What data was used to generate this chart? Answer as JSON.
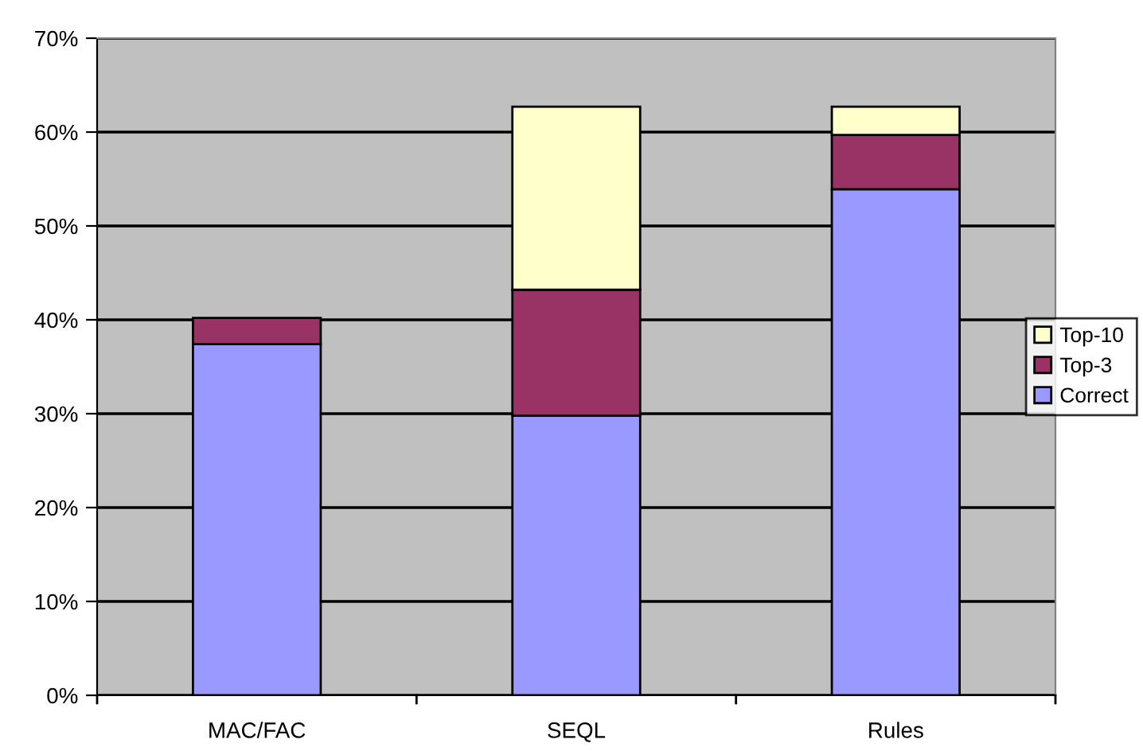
{
  "chart_data": {
    "type": "bar",
    "stacked": true,
    "categories": [
      "MAC/FAC",
      "SEQL",
      "Rules"
    ],
    "series": [
      {
        "name": "Correct",
        "color": "#9999ff",
        "values": [
          37.4,
          29.8,
          53.9
        ]
      },
      {
        "name": "Top-3",
        "color": "#993366",
        "values": [
          2.8,
          13.4,
          5.8
        ]
      },
      {
        "name": "Top-10",
        "color": "#ffffcc",
        "values": [
          null,
          19.5,
          3.0
        ]
      }
    ],
    "ylim": [
      0,
      70
    ],
    "yticks": [
      {
        "value": 0,
        "label": "0%"
      },
      {
        "value": 10,
        "label": "10%"
      },
      {
        "value": 20,
        "label": "20%"
      },
      {
        "value": 30,
        "label": "30%"
      },
      {
        "value": 40,
        "label": "40%"
      },
      {
        "value": 50,
        "label": "50%"
      },
      {
        "value": 60,
        "label": "60%"
      },
      {
        "value": 70,
        "label": "70%"
      }
    ],
    "grid": "y",
    "legend": "right"
  }
}
